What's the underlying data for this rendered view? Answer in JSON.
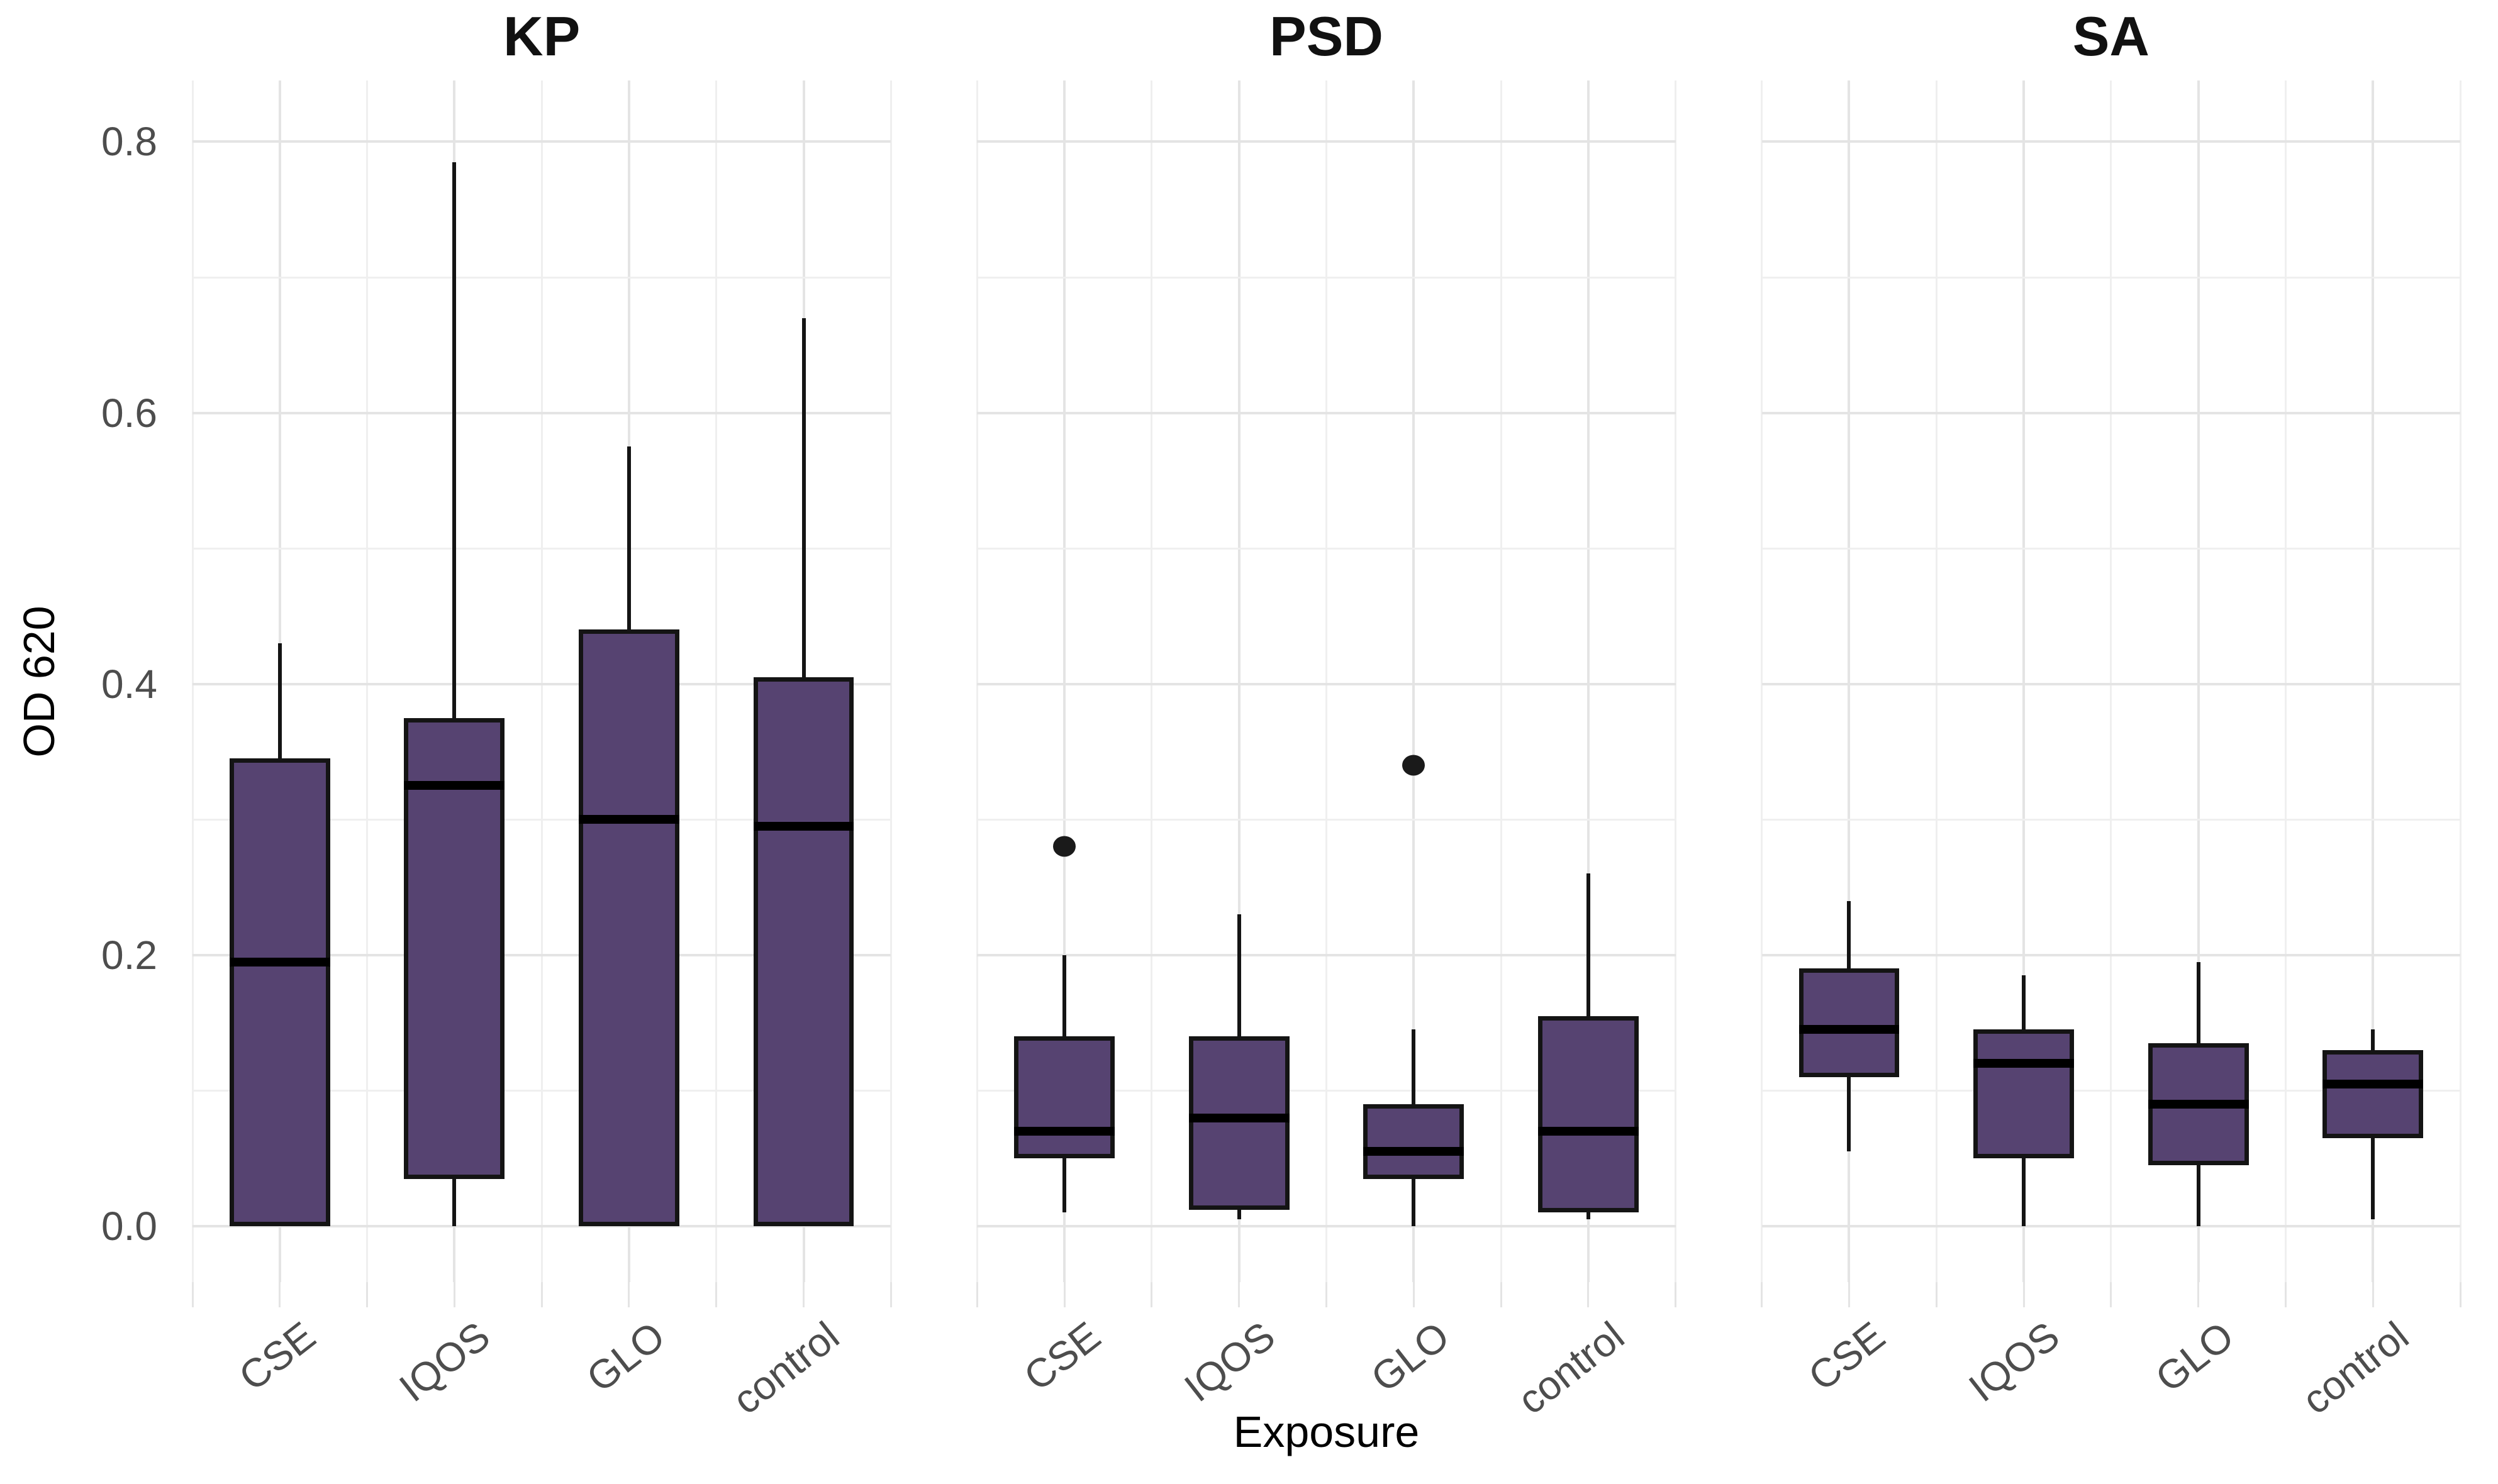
{
  "chart_data": {
    "type": "boxplot",
    "title": "",
    "xlabel": "Exposure",
    "ylabel": "OD 620",
    "categories": [
      "CSE",
      "IQOS",
      "GLO",
      "control"
    ],
    "y_ticks": [
      0.0,
      0.2,
      0.4,
      0.6,
      0.8
    ],
    "y_tick_labels": [
      "0.0",
      "0.2",
      "0.4",
      "0.6",
      "0.8"
    ],
    "y_minor_ticks": [
      0.1,
      0.3,
      0.5,
      0.7
    ],
    "ylim": [
      -0.0413,
      0.8452
    ],
    "grid": true,
    "legend": false,
    "facets": [
      {
        "title": "KP",
        "boxes": [
          {
            "category": "CSE",
            "min": 0.0,
            "q1": 0.0,
            "median": 0.195,
            "q3": 0.345,
            "max": 0.43,
            "outliers": []
          },
          {
            "category": "IQOS",
            "min": 0.0,
            "q1": 0.035,
            "median": 0.325,
            "q3": 0.375,
            "max": 0.785,
            "outliers": []
          },
          {
            "category": "GLO",
            "min": 0.0,
            "q1": 0.0,
            "median": 0.3,
            "q3": 0.44,
            "max": 0.575,
            "outliers": []
          },
          {
            "category": "control",
            "min": 0.0,
            "q1": 0.0,
            "median": 0.295,
            "q3": 0.405,
            "max": 0.67,
            "outliers": []
          }
        ]
      },
      {
        "title": "PSD",
        "boxes": [
          {
            "category": "CSE",
            "min": 0.01,
            "q1": 0.05,
            "median": 0.07,
            "q3": 0.14,
            "max": 0.2,
            "outliers": [
              0.28
            ]
          },
          {
            "category": "IQOS",
            "min": 0.005,
            "q1": 0.012,
            "median": 0.08,
            "q3": 0.14,
            "max": 0.23,
            "outliers": []
          },
          {
            "category": "GLO",
            "min": 0.0,
            "q1": 0.035,
            "median": 0.055,
            "q3": 0.09,
            "max": 0.145,
            "outliers": [
              0.34
            ]
          },
          {
            "category": "control",
            "min": 0.005,
            "q1": 0.01,
            "median": 0.07,
            "q3": 0.155,
            "max": 0.26,
            "outliers": []
          }
        ]
      },
      {
        "title": "SA",
        "boxes": [
          {
            "category": "CSE",
            "min": 0.055,
            "q1": 0.11,
            "median": 0.145,
            "q3": 0.19,
            "max": 0.24,
            "outliers": []
          },
          {
            "category": "IQOS",
            "min": 0.0,
            "q1": 0.05,
            "median": 0.12,
            "q3": 0.145,
            "max": 0.185,
            "outliers": []
          },
          {
            "category": "GLO",
            "min": 0.0,
            "q1": 0.045,
            "median": 0.09,
            "q3": 0.135,
            "max": 0.195,
            "outliers": []
          },
          {
            "category": "control",
            "min": 0.005,
            "q1": 0.065,
            "median": 0.105,
            "q3": 0.13,
            "max": 0.145,
            "outliers": []
          }
        ]
      }
    ],
    "colors": {
      "background": "#ffffff",
      "box_fill": "#564371",
      "box_border": "#141414",
      "median": "#000000",
      "whisker": "#141414",
      "outlier": "#1a1a1a",
      "grid_major": "#e4e4e4",
      "grid_minor": "#efefef",
      "tick_label": "#4d4d4d",
      "axis_title": "#000000",
      "facet_title": "#111111"
    }
  }
}
